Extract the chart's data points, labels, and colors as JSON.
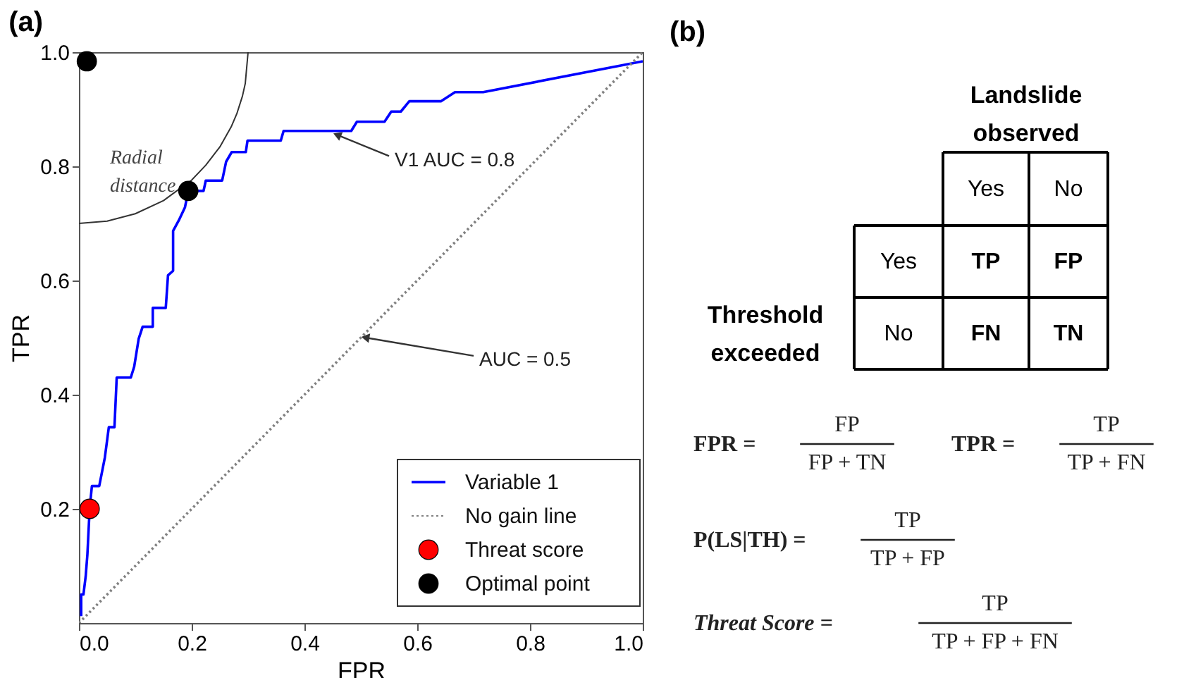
{
  "chart_data": [
    {
      "type": "line",
      "title": "(a)",
      "xlabel": "FPR",
      "ylabel": "TPR",
      "xlim": [
        0,
        1
      ],
      "ylim": [
        0,
        1
      ],
      "xticks": [
        {
          "value": 0,
          "label": "0.0"
        },
        0.2,
        0.4,
        0.6,
        0.8,
        {
          "value": 1,
          "label": "1.0"
        }
      ],
      "yticks": [
        0.2,
        0.4,
        0.6,
        0.8,
        {
          "value": 1,
          "label": "1.0"
        }
      ],
      "legend": "bottom right",
      "series": [
        {
          "name": "Variable 1",
          "type": "line",
          "color": "#0000ff",
          "line_style": "solid",
          "x": [
            0.004,
            0.004,
            0.008,
            0.012,
            0.015,
            0.019,
            0.023,
            0.036,
            0.046,
            0.053,
            0.063,
            0.067,
            0.092,
            0.098,
            0.106,
            0.113,
            0.131,
            0.131,
            0.154,
            0.158,
            0.167,
            0.167,
            0.178,
            0.188,
            0.194,
            0.221,
            0.225,
            0.254,
            0.261,
            0.271,
            0.296,
            0.299,
            0.358,
            0.363,
            0.483,
            0.493,
            0.542,
            0.554,
            0.571,
            0.586,
            0.642,
            0.667,
            0.717,
            1.0
          ],
          "values": [
            0.012,
            0.05,
            0.05,
            0.082,
            0.12,
            0.2,
            0.24,
            0.24,
            0.29,
            0.343,
            0.343,
            0.43,
            0.43,
            0.449,
            0.498,
            0.519,
            0.519,
            0.552,
            0.552,
            0.609,
            0.617,
            0.687,
            0.707,
            0.728,
            0.757,
            0.757,
            0.775,
            0.775,
            0.808,
            0.825,
            0.825,
            0.845,
            0.845,
            0.862,
            0.862,
            0.878,
            0.878,
            0.896,
            0.896,
            0.914,
            0.914,
            0.93,
            0.93,
            0.984
          ]
        },
        {
          "name": "No gain line",
          "type": "line",
          "color": "#808080",
          "line_style": "dotted",
          "x": [
            0,
            1
          ],
          "values": [
            0,
            1
          ]
        },
        {
          "type": "line",
          "color": "#333333",
          "line_style": "solid",
          "x": [
            0,
            0.05,
            0.1,
            0.15,
            0.2,
            0.225,
            0.25,
            0.27,
            0.28,
            0.29,
            0.295,
            0.3
          ],
          "values": [
            0.7,
            0.704,
            0.717,
            0.74,
            0.776,
            0.802,
            0.834,
            0.869,
            0.892,
            0.923,
            0.945,
            1.0
          ]
        },
        {
          "name": "Threat score",
          "type": "scatter",
          "marker": "circle",
          "color": "#ff0000",
          "x": [
            0.019
          ],
          "values": [
            0.2
          ]
        },
        {
          "name": "Optimal point",
          "type": "scatter",
          "marker": "circle",
          "color": "#000000",
          "x": [
            0.014,
            0.194
          ],
          "values": [
            0.984,
            0.757
          ]
        }
      ],
      "annotations": [
        "Radial distance",
        {
          "text": "V1 AUC = 0.8",
          "x": 0.45,
          "y": 0.855
        },
        {
          "text": "AUC = 0.5",
          "x": 0.5,
          "y": 0.5
        }
      ]
    },
    {
      "type": "other",
      "title": "(b)",
      "annotations": [
        "Landslide observed",
        "Threshold exceeded",
        "Yes",
        "No",
        "Yes",
        "No",
        "TP",
        "FP",
        "FN",
        "TN",
        "FPR  =",
        "FP",
        "FP + TN",
        "TPR  =",
        "TP",
        "TP + FN",
        "P(LS|TH)  =",
        "TP",
        "TP + FP",
        "Threat Score  =",
        "TP",
        "TP + FP + FN"
      ]
    }
  ]
}
